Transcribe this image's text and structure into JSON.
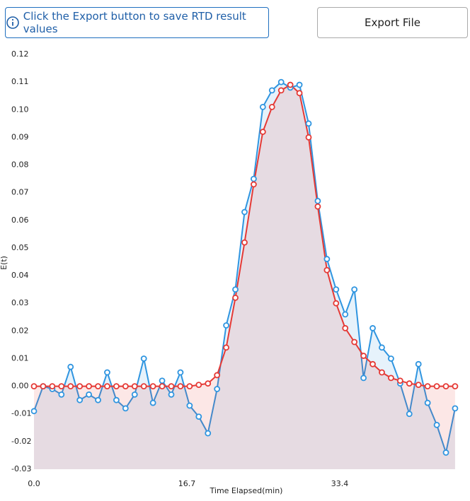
{
  "ui": {
    "info_button": "Click the Export button to save RTD result values",
    "export_button": "Export File"
  },
  "chart_data": {
    "type": "line",
    "x_label": "Time Elapsed(min)",
    "y_label": "E(t)",
    "x": [
      0,
      1,
      2,
      3,
      4,
      5,
      6,
      7,
      8,
      9,
      10,
      11,
      12,
      13,
      14,
      15,
      16,
      17,
      18,
      19,
      20,
      21,
      22,
      23,
      24,
      25,
      26,
      27,
      28,
      29,
      30,
      31,
      32,
      33,
      34,
      35,
      36,
      37,
      38,
      39,
      40,
      41,
      42,
      43,
      44,
      45,
      46
    ],
    "series": [
      {
        "color": "#2f95e0",
        "values": [
          -0.009,
          0.0,
          -0.001,
          -0.003,
          0.007,
          -0.005,
          -0.003,
          -0.005,
          0.005,
          -0.005,
          -0.008,
          -0.003,
          0.01,
          -0.006,
          0.002,
          -0.003,
          0.005,
          -0.007,
          -0.011,
          -0.017,
          -0.001,
          0.022,
          0.035,
          0.063,
          0.075,
          0.101,
          0.107,
          0.11,
          0.108,
          0.109,
          0.095,
          0.067,
          0.046,
          0.035,
          0.026,
          0.035,
          0.003,
          0.021,
          0.014,
          0.01,
          0.001,
          -0.01,
          0.008,
          -0.006,
          -0.014,
          -0.024,
          -0.008
        ]
      },
      {
        "color": "#e53935",
        "values": [
          0,
          0,
          0,
          0,
          0,
          0,
          0,
          0,
          0,
          0,
          0,
          0,
          0,
          0,
          0,
          0,
          0,
          0,
          0.0005,
          0.001,
          0.004,
          0.014,
          0.032,
          0.052,
          0.073,
          0.092,
          0.101,
          0.107,
          0.109,
          0.106,
          0.09,
          0.065,
          0.042,
          0.03,
          0.021,
          0.016,
          0.011,
          0.008,
          0.005,
          0.003,
          0.002,
          0.001,
          0.0005,
          0,
          0,
          0,
          0
        ]
      }
    ],
    "xlim": [
      0,
      46.7
    ],
    "xticks": [
      {
        "value": 0,
        "label": "0.0"
      },
      16.7,
      33.4
    ],
    "ylim": [
      -0.03,
      0.12
    ],
    "yticks": [
      -0.03,
      -0.02,
      -0.01,
      {
        "value": 0,
        "label": "0.00"
      },
      0.01,
      0.02,
      0.03,
      0.04,
      0.05,
      0.06,
      0.07,
      0.08,
      0.09,
      {
        "value": 0.1,
        "label": "0.10"
      },
      0.11,
      0.12
    ],
    "fill_area": true
  }
}
